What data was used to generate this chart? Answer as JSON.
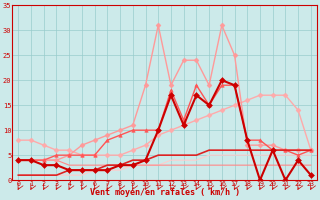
{
  "background_color": "#cceaea",
  "grid_color": "#99cccc",
  "xlabel": "Vent moyen/en rafales ( km/h )",
  "x": [
    0,
    1,
    2,
    3,
    4,
    5,
    6,
    7,
    8,
    9,
    10,
    11,
    12,
    13,
    14,
    15,
    16,
    17,
    18,
    19,
    20,
    21,
    22,
    23
  ],
  "ylim": [
    0,
    35
  ],
  "yticks": [
    0,
    5,
    10,
    15,
    20,
    25,
    30,
    35
  ],
  "series": [
    {
      "name": "light_pink_diagonal",
      "values": [
        8,
        8,
        7,
        6,
        6,
        5,
        5,
        5,
        5,
        6,
        7,
        9,
        10,
        11,
        12,
        13,
        14,
        15,
        16,
        17,
        17,
        17,
        14,
        6
      ],
      "color": "#ffaaaa",
      "lw": 1.0,
      "marker": "D",
      "ms": 2.5,
      "ls": "-",
      "zorder": 2
    },
    {
      "name": "medium_pink_peak11_16",
      "values": [
        4,
        4,
        4,
        4,
        5,
        7,
        8,
        9,
        10,
        11,
        19,
        31,
        19,
        24,
        24,
        19,
        31,
        25,
        7,
        7,
        7,
        6,
        6,
        6
      ],
      "color": "#ff9999",
      "lw": 1.0,
      "marker": "D",
      "ms": 2.5,
      "ls": "-",
      "zorder": 3
    },
    {
      "name": "medium_red_triangles",
      "values": [
        4,
        4,
        4,
        5,
        5,
        5,
        5,
        8,
        9,
        10,
        10,
        10,
        18,
        12,
        19,
        15,
        19,
        19,
        8,
        8,
        6,
        6,
        5,
        6
      ],
      "color": "#ff5555",
      "lw": 1.0,
      "marker": "^",
      "ms": 2.5,
      "ls": "-",
      "zorder": 4
    },
    {
      "name": "dark_red_main",
      "values": [
        4,
        4,
        3,
        3,
        2,
        2,
        2,
        2,
        3,
        3,
        4,
        10,
        17,
        11,
        17,
        15,
        20,
        19,
        8,
        0,
        6,
        0,
        4,
        1
      ],
      "color": "#cc0000",
      "lw": 1.5,
      "marker": "D",
      "ms": 3.0,
      "ls": "-",
      "zorder": 6
    },
    {
      "name": "flat_low1",
      "values": [
        1,
        1,
        1,
        1,
        1,
        1,
        2,
        2,
        2,
        3,
        3,
        3,
        4,
        4,
        4,
        5,
        5,
        5,
        5,
        5,
        5,
        5,
        5,
        5
      ],
      "color": "#ffcccc",
      "lw": 0.8,
      "marker": null,
      "ms": 0,
      "ls": "-",
      "zorder": 1
    },
    {
      "name": "flat_low2",
      "values": [
        4,
        4,
        4,
        4,
        3,
        3,
        3,
        3,
        3,
        3,
        3,
        3,
        3,
        3,
        3,
        3,
        3,
        3,
        3,
        3,
        3,
        3,
        3,
        3
      ],
      "color": "#ff8888",
      "lw": 0.8,
      "marker": null,
      "ms": 0,
      "ls": "-",
      "zorder": 1
    },
    {
      "name": "bold_red_flat",
      "values": [
        1,
        1,
        1,
        1,
        2,
        2,
        2,
        3,
        3,
        4,
        4,
        5,
        5,
        5,
        5,
        6,
        6,
        6,
        6,
        6,
        6,
        6,
        6,
        6
      ],
      "color": "#dd2222",
      "lw": 1.2,
      "marker": null,
      "ms": 0,
      "ls": "-",
      "zorder": 5
    }
  ],
  "spine_color": "#cc0000",
  "tick_color": "#cc0000",
  "label_color": "#cc0000",
  "arrow_color": "#cc0000"
}
